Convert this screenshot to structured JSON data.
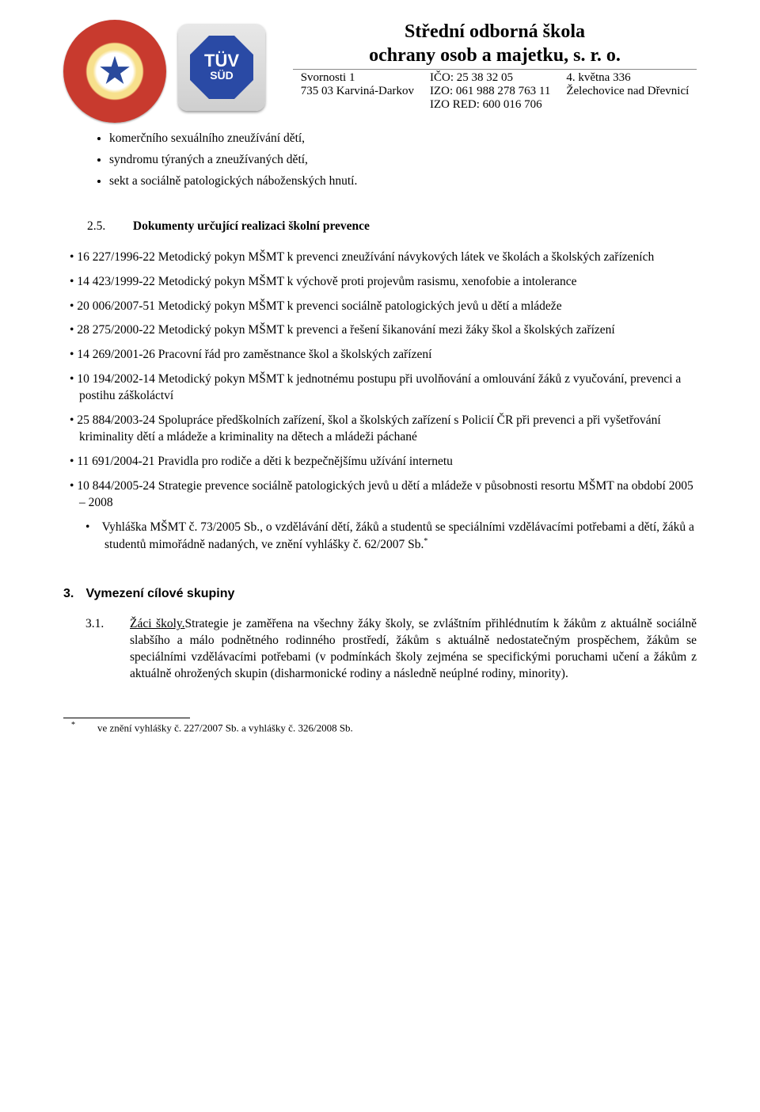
{
  "header": {
    "title_line1": "Střední odborná škola",
    "title_line2": "ochrany osob a majetku, s. r. o.",
    "addr1": "Svornosti 1",
    "addr2": "735 03  Karviná-Darkov",
    "ico": "IČO: 25 38 32 05",
    "izo": "IZO: 061 988 278  763 11",
    "izo_red": "IZO RED: 600 016 706",
    "right1": "4. května 336",
    "right2": "Želechovice nad Dřevnicí",
    "tuv1": "TÜV",
    "tuv2": "SÜD"
  },
  "bullets_top": [
    "komerčního sexuálního zneužívání dětí,",
    "syndromu týraných a zneužívaných dětí,",
    "sekt a sociálně patologických náboženských hnutí."
  ],
  "section25": {
    "num": "2.5.",
    "title": "Dokumenty určující realizaci školní prevence"
  },
  "docs": [
    "16 227/1996-22 Metodický pokyn MŠMT k prevenci zneužívání návykových látek ve školách a školských zařízeních",
    "14 423/1999-22 Metodický pokyn MŠMT k výchově proti projevům rasismu, xenofobie a intolerance",
    "20 006/2007-51 Metodický pokyn MŠMT k prevenci sociálně patologických jevů u dětí a mládeže",
    "28 275/2000-22 Metodický pokyn MŠMT k prevenci a řešení šikanování mezi žáky škol a školských zařízení",
    "14 269/2001-26 Pracovní řád pro zaměstnance škol a školských zařízení",
    "10 194/2002-14 Metodický pokyn MŠMT k jednotnému postupu při uvolňování a omlouvání žáků z vyučování, prevenci a postihu záškoláctví",
    "25 884/2003-24 Spolupráce předškolních zařízení, škol a školských zařízení s Policií ČR při prevenci a při vyšetřování kriminality dětí a mládeže a kriminality na dětech a mládeži páchané",
    "11 691/2004-21 Pravidla pro rodiče a děti k bezpečnějšímu užívání internetu",
    "10 844/2005-24 Strategie prevence sociálně patologických jevů u dětí a mládeže v působnosti resortu MŠMT na období 2005 – 2008"
  ],
  "vyhlaska": "Vyhláška MŠMT č. 73/2005 Sb., o vzdělávání dětí, žáků a studentů se speciálními vzdělávacími potřebami a dětí, žáků a studentů mimořádně nadaných, ve znění vyhlášky č. 62/2007 Sb.",
  "section3": {
    "num": "3.",
    "title": "Vymezení cílové skupiny"
  },
  "sub31": {
    "num": "3.1.",
    "lead": "Žáci školy.",
    "text": "Strategie je zaměřena na všechny žáky školy, se zvláštním přihlédnutím k žákům z aktuálně  sociálně slabšího a málo podnětného rodinného prostředí, žákům s aktuálně nedostatečným prospěchem, žákům se speciálními vzdělávacími potřebami (v podmínkách školy zejména se specifickými poruchami učení a žákům z aktuálně ohrožených skupin (disharmonické rodiny a následně  neúplné rodiny, minority)."
  },
  "footnote": {
    "mark": "*",
    "text": "ve znění vyhlášky č. 227/2007 Sb.  a vyhlášky č. 326/2008 Sb."
  }
}
